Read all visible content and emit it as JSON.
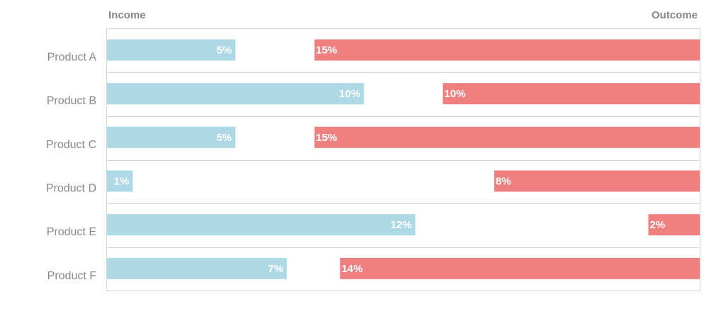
{
  "chart_data": {
    "type": "bar",
    "orientation": "horizontal",
    "layout": "butterfly",
    "title": "",
    "categories": [
      "Product A",
      "Product B",
      "Product C",
      "Product D",
      "Product E",
      "Product F"
    ],
    "series": [
      {
        "name": "Income",
        "values": [
          5,
          10,
          5,
          1,
          12,
          7
        ],
        "labels": [
          "5%",
          "10%",
          "5%",
          "1%",
          "12%",
          "7%"
        ],
        "color": "#add8e6",
        "anchor": "left"
      },
      {
        "name": "Outcome",
        "values": [
          15,
          10,
          15,
          8,
          2,
          14
        ],
        "labels": [
          "15%",
          "10%",
          "15%",
          "8%",
          "2%",
          "14%"
        ],
        "color": "#f08080",
        "anchor": "right"
      }
    ],
    "total": 23.1,
    "legend_position": "top",
    "grid": true
  },
  "colors": {
    "border": "#d3d3d3",
    "text": "#888888",
    "bar_text": "#ffffff"
  }
}
